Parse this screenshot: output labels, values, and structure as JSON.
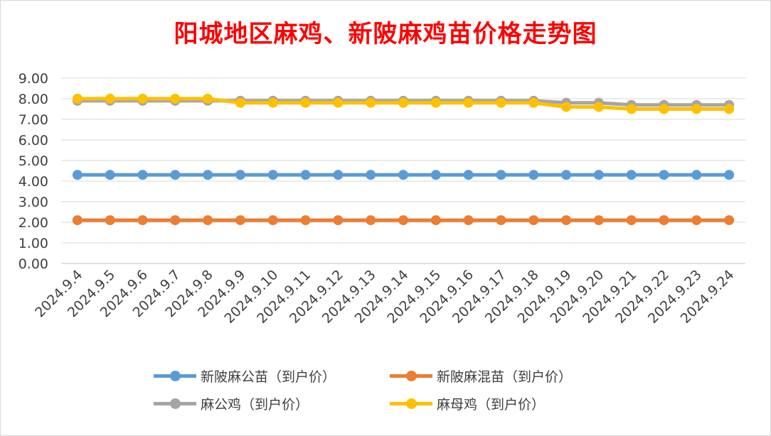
{
  "chart_data": {
    "type": "line",
    "title": "阳城地区麻鸡、新陂麻鸡苗价格走势图",
    "title_color": "#ff0000",
    "categories": [
      "2024.9.4",
      "2024.9.5",
      "2024.9.6",
      "2024.9.7",
      "2024.9.8",
      "2024.9.9",
      "2024.9.10",
      "2024.9.11",
      "2024.9.12",
      "2024.9.13",
      "2024.9.14",
      "2024.9.15",
      "2024.9.16",
      "2024.9.17",
      "2024.9.18",
      "2024.9.19",
      "2024.9.20",
      "2024.9.21",
      "2024.9.22",
      "2024.9.23",
      "2024.9.24"
    ],
    "yticks": [
      "0.00",
      "1.00",
      "2.00",
      "3.00",
      "4.00",
      "5.00",
      "6.00",
      "7.00",
      "8.00",
      "9.00"
    ],
    "ylim": [
      0,
      9
    ],
    "grid": true,
    "legend_position": "bottom",
    "series": [
      {
        "name": "新陂麻公苗（到户价）",
        "color": "#5b9bd5",
        "values": [
          4.3,
          4.3,
          4.3,
          4.3,
          4.3,
          4.3,
          4.3,
          4.3,
          4.3,
          4.3,
          4.3,
          4.3,
          4.3,
          4.3,
          4.3,
          4.3,
          4.3,
          4.3,
          4.3,
          4.3,
          4.3
        ]
      },
      {
        "name": "新陂麻混苗（到户价）",
        "color": "#ed7d31",
        "values": [
          2.1,
          2.1,
          2.1,
          2.1,
          2.1,
          2.1,
          2.1,
          2.1,
          2.1,
          2.1,
          2.1,
          2.1,
          2.1,
          2.1,
          2.1,
          2.1,
          2.1,
          2.1,
          2.1,
          2.1,
          2.1
        ]
      },
      {
        "name": "麻公鸡（到户价）",
        "color": "#a5a5a5",
        "values": [
          7.9,
          7.9,
          7.9,
          7.9,
          7.9,
          7.9,
          7.9,
          7.9,
          7.9,
          7.9,
          7.9,
          7.9,
          7.9,
          7.9,
          7.9,
          7.8,
          7.8,
          7.7,
          7.7,
          7.7,
          7.7
        ]
      },
      {
        "name": "麻母鸡（到户价）",
        "color": "#ffc000",
        "values": [
          8.0,
          8.0,
          8.0,
          8.0,
          8.0,
          7.8,
          7.8,
          7.8,
          7.8,
          7.8,
          7.8,
          7.8,
          7.8,
          7.8,
          7.8,
          7.6,
          7.6,
          7.5,
          7.5,
          7.5,
          7.5
        ]
      }
    ]
  }
}
